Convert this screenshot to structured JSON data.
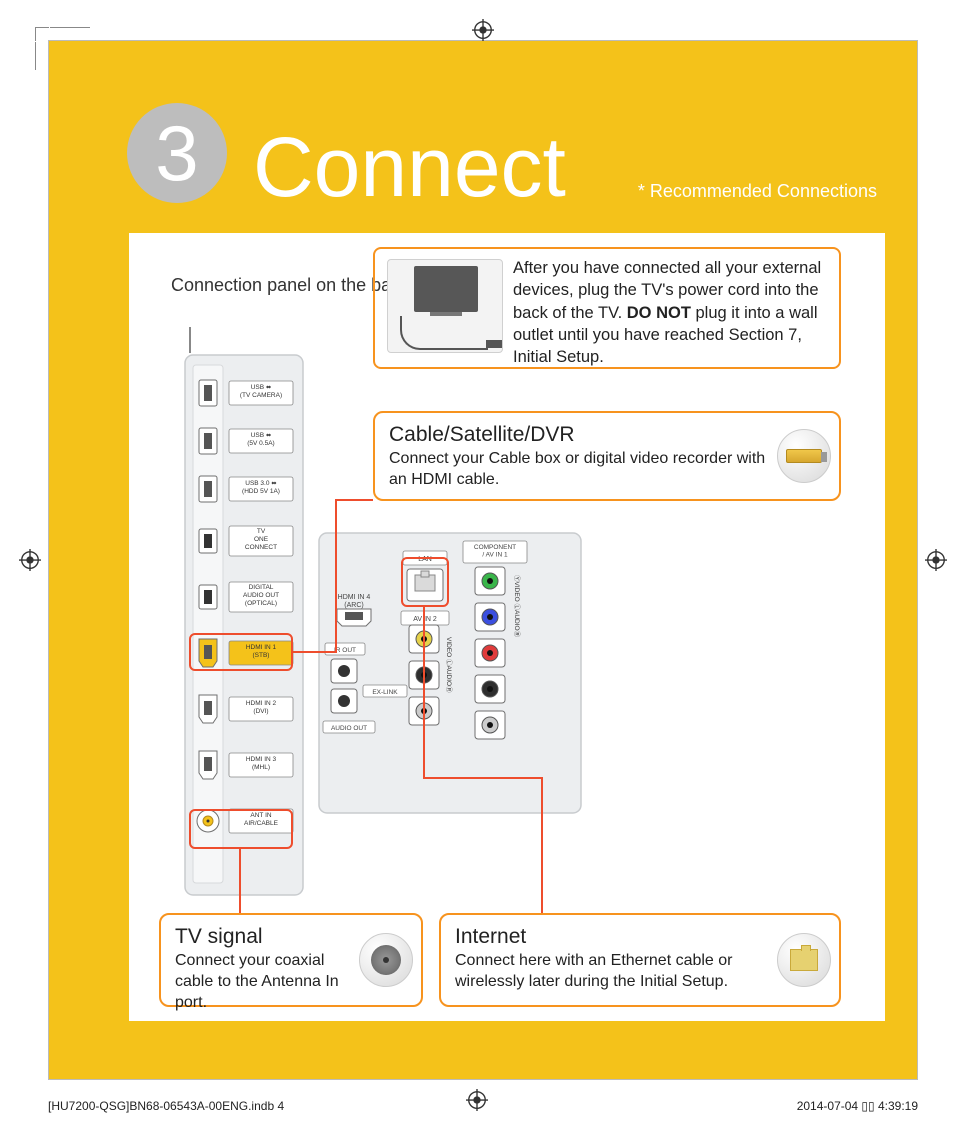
{
  "header": {
    "step_number": "3",
    "title": "Connect",
    "subtitle": "* Recommended Connections"
  },
  "caption_top": "Connection panel on the back of the TV",
  "power_note": {
    "text_before_bold": "After you have connected all your external devices, plug the TV's power cord into the back of the TV. ",
    "bold": "DO NOT",
    "text_after_bold": " plug it into a wall outlet until you have reached Section 7, Initial Setup."
  },
  "callouts": {
    "cable": {
      "title": "Cable/Satellite/DVR",
      "body": "Connect your Cable box or digital video recorder with an HDMI cable."
    },
    "tv": {
      "title": "TV signal",
      "body": "Connect your coaxial cable to the Antenna In port."
    },
    "net": {
      "title": "Internet",
      "body": "Connect here with an Ethernet cable or wirelessly later during the Initial Setup."
    }
  },
  "panel": {
    "vertical_ports": [
      {
        "shape": "usb",
        "label_lines": [
          "USB ⬌",
          "(TV CAMERA)"
        ]
      },
      {
        "shape": "usb",
        "label_lines": [
          "USB ⬌",
          "(5V 0.5A)"
        ]
      },
      {
        "shape": "usb",
        "label_lines": [
          "USB 3.0 ⬌",
          "(HDD 5V 1A)"
        ]
      },
      {
        "shape": "square",
        "label_lines": [
          "TV",
          "ONE",
          "CONNECT"
        ]
      },
      {
        "shape": "square",
        "label_lines": [
          "DIGITAL",
          "AUDIO OUT",
          "(OPTICAL)"
        ]
      },
      {
        "shape": "hdmi",
        "label_lines": [
          "HDMI IN 1",
          "(STB)"
        ],
        "highlight": "#f4c21a"
      },
      {
        "shape": "hdmi",
        "label_lines": [
          "HDMI IN 2",
          "(DVI)"
        ]
      },
      {
        "shape": "hdmi",
        "label_lines": [
          "HDMI IN 3",
          "(MHL)"
        ]
      },
      {
        "shape": "coax",
        "label_lines": [
          "ANT IN",
          "AIR/CABLE"
        ]
      }
    ],
    "center_block": {
      "hdmi4_label": "HDMI IN 4\n(ARC)",
      "ir_out": "IR OUT",
      "ex_link": "EX-LINK",
      "audio_out": "AUDIO OUT",
      "lan": "LAN",
      "avin2": "AV IN 2",
      "avin2_sidetext": "VIDEO   ⓁAUDIOⓇ",
      "component_label": "COMPONENT\n/ AV IN 1",
      "component_sidetext": "ⓎVIDEO   ⓁAUDIOⓇ",
      "rca_left": [
        "#e6d24a",
        "#2e2e2e",
        "#cccccc"
      ],
      "rca_right": [
        "#3ab54a",
        "#3b4fe0",
        "#e03b3b",
        "#2e2e2e",
        "#cccccc"
      ]
    },
    "colors": {
      "panel_bg": "#eceef0",
      "port_stroke": "#6f6f6f",
      "label_text": "#444444",
      "highlight_frame": "#ee4d2d",
      "orange_box": "#f7931e"
    }
  },
  "footer": {
    "left": "[HU7200-QSG]BN68-06543A-00ENG.indb   4",
    "right": "2014-07-04   ▯▯ 4:39:19"
  }
}
